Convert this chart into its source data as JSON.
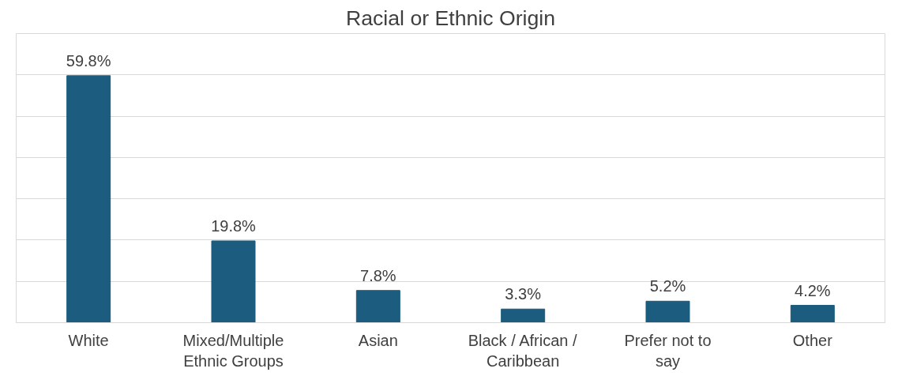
{
  "chart_data": {
    "type": "bar",
    "title": "Racial or Ethnic Origin",
    "categories": [
      "White",
      "Mixed/Multiple\nEthnic Groups",
      "Asian",
      "Black / African /\nCaribbean",
      "Prefer not to\nsay",
      "Other"
    ],
    "values": [
      59.8,
      19.8,
      7.8,
      3.3,
      5.2,
      4.2
    ],
    "value_labels": [
      "59.8%",
      "19.8%",
      "7.8%",
      "3.3%",
      "5.2%",
      "4.2%"
    ],
    "color": "#1b5c7f",
    "ylim": [
      0,
      70
    ],
    "yticks": [
      {
        "value": 0,
        "label": null
      },
      {
        "value": 10,
        "label": null
      },
      {
        "value": 20,
        "label": null
      },
      {
        "value": 30,
        "label": null
      },
      {
        "value": 40,
        "label": null
      },
      {
        "value": 50,
        "label": null
      },
      {
        "value": 60,
        "label": null
      },
      {
        "value": 70,
        "label": null
      }
    ],
    "grid": "y",
    "tick_labels": "x"
  }
}
